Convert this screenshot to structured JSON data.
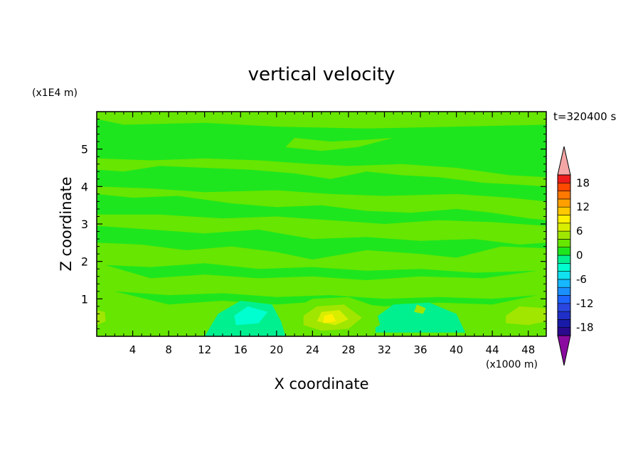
{
  "chart_data": {
    "type": "heatmap",
    "title": "vertical velocity",
    "xlabel": "X coordinate",
    "ylabel": "Z coordinate",
    "x_unit": "(x1000 m)",
    "y_unit": "(x1E4 m)",
    "time_label": "t=320400 s",
    "xlim": [
      0,
      50
    ],
    "ylim": [
      0,
      6
    ],
    "x_ticks": [
      4,
      8,
      12,
      16,
      20,
      24,
      28,
      32,
      36,
      40,
      44,
      48
    ],
    "x_tick_labels": [
      "4",
      "8",
      "12",
      "16",
      "20",
      "24",
      "28",
      "32",
      "36",
      "40",
      "44",
      "48"
    ],
    "y_ticks": [
      1,
      2,
      3,
      4,
      5
    ],
    "y_tick_labels": [
      "1",
      "2",
      "3",
      "4",
      "5"
    ],
    "colorbar": {
      "levels": [
        -20,
        -18,
        -16,
        -14,
        -12,
        -10,
        -8,
        -6,
        -4,
        -2,
        0,
        2,
        4,
        6,
        8,
        10,
        12,
        14,
        16,
        18,
        20
      ],
      "colors": [
        "#2a0a8c",
        "#1a1aa8",
        "#1f2fc8",
        "#2a46e0",
        "#1e64ff",
        "#1a90ff",
        "#16b8ff",
        "#10e0f0",
        "#00ffd0",
        "#00f090",
        "#1ee61e",
        "#66e600",
        "#a0e600",
        "#d8ee00",
        "#fff000",
        "#ffc800",
        "#ffa000",
        "#ff7800",
        "#ff4a00",
        "#ee1c1c"
      ],
      "under_color": "#8a0aa0",
      "over_color": "#f4a6a6",
      "tick_values": [
        -18,
        -12,
        -6,
        0,
        6,
        12,
        18
      ],
      "tick_labels": [
        "-18",
        "-12",
        "-6",
        "0",
        "6",
        "12",
        "18"
      ]
    },
    "background_value": 0,
    "regions": [
      {
        "level": 2,
        "poly": [
          [
            0,
            5.8
          ],
          [
            3,
            5.65
          ],
          [
            12,
            5.7
          ],
          [
            20,
            5.6
          ],
          [
            30,
            5.55
          ],
          [
            40,
            5.6
          ],
          [
            50,
            5.65
          ],
          [
            50,
            6
          ],
          [
            0,
            6
          ]
        ]
      },
      {
        "level": 2,
        "poly": [
          [
            0,
            4.45
          ],
          [
            3,
            4.4
          ],
          [
            7,
            4.55
          ],
          [
            12,
            4.5
          ],
          [
            17,
            4.45
          ],
          [
            22,
            4.35
          ],
          [
            26,
            4.2
          ],
          [
            27,
            4.25
          ],
          [
            30,
            4.4
          ],
          [
            34,
            4.3
          ],
          [
            38,
            4.25
          ],
          [
            43,
            4.1
          ],
          [
            47,
            4.05
          ],
          [
            50,
            4.0
          ],
          [
            50,
            4.25
          ],
          [
            46,
            4.3
          ],
          [
            40,
            4.5
          ],
          [
            34,
            4.6
          ],
          [
            28,
            4.55
          ],
          [
            24,
            4.6
          ],
          [
            18,
            4.7
          ],
          [
            12,
            4.75
          ],
          [
            6,
            4.7
          ],
          [
            0,
            4.75
          ]
        ]
      },
      {
        "level": 2,
        "poly": [
          [
            22,
            5.3
          ],
          [
            26,
            5.2
          ],
          [
            30,
            5.25
          ],
          [
            33,
            5.3
          ],
          [
            29,
            5.05
          ],
          [
            25,
            4.95
          ],
          [
            21,
            5.05
          ]
        ]
      },
      {
        "level": 2,
        "poly": [
          [
            0,
            3.8
          ],
          [
            4,
            3.7
          ],
          [
            9,
            3.75
          ],
          [
            15,
            3.55
          ],
          [
            20,
            3.45
          ],
          [
            25,
            3.5
          ],
          [
            30,
            3.35
          ],
          [
            35,
            3.3
          ],
          [
            40,
            3.4
          ],
          [
            44,
            3.3
          ],
          [
            48,
            3.15
          ],
          [
            50,
            3.1
          ],
          [
            50,
            3.6
          ],
          [
            46,
            3.7
          ],
          [
            40,
            3.8
          ],
          [
            32,
            3.75
          ],
          [
            26,
            3.8
          ],
          [
            20,
            3.9
          ],
          [
            12,
            3.85
          ],
          [
            6,
            3.95
          ],
          [
            0,
            4.0
          ]
        ]
      },
      {
        "level": 2,
        "poly": [
          [
            0,
            2.95
          ],
          [
            6,
            2.85
          ],
          [
            12,
            2.75
          ],
          [
            18,
            2.85
          ],
          [
            24,
            2.6
          ],
          [
            30,
            2.65
          ],
          [
            36,
            2.55
          ],
          [
            42,
            2.6
          ],
          [
            47,
            2.45
          ],
          [
            50,
            2.5
          ],
          [
            50,
            2.95
          ],
          [
            44,
            3.05
          ],
          [
            38,
            3.1
          ],
          [
            32,
            3.0
          ],
          [
            26,
            3.1
          ],
          [
            20,
            3.2
          ],
          [
            14,
            3.15
          ],
          [
            7,
            3.25
          ],
          [
            0,
            3.25
          ]
        ]
      },
      {
        "level": 2,
        "poly": [
          [
            0,
            0
          ],
          [
            50,
            0
          ],
          [
            50,
            2.35
          ],
          [
            45,
            2.4
          ],
          [
            40,
            2.1
          ],
          [
            36,
            2.2
          ],
          [
            30,
            2.3
          ],
          [
            24,
            2.05
          ],
          [
            20,
            2.25
          ],
          [
            15,
            2.4
          ],
          [
            10,
            2.3
          ],
          [
            5,
            2.45
          ],
          [
            0,
            2.5
          ]
        ]
      },
      {
        "level": 0,
        "poly": [
          [
            1,
            1.9
          ],
          [
            6,
            1.85
          ],
          [
            12,
            1.95
          ],
          [
            18,
            1.8
          ],
          [
            24,
            1.85
          ],
          [
            30,
            1.75
          ],
          [
            36,
            1.8
          ],
          [
            42,
            1.7
          ],
          [
            49,
            1.75
          ],
          [
            43,
            1.55
          ],
          [
            36,
            1.6
          ],
          [
            30,
            1.5
          ],
          [
            24,
            1.6
          ],
          [
            18,
            1.55
          ],
          [
            12,
            1.65
          ],
          [
            6,
            1.55
          ]
        ]
      },
      {
        "level": 0,
        "poly": [
          [
            2,
            1.2
          ],
          [
            8,
            1.1
          ],
          [
            14,
            1.15
          ],
          [
            20,
            1.05
          ],
          [
            26,
            1.1
          ],
          [
            32,
            1.0
          ],
          [
            38,
            1.05
          ],
          [
            44,
            1.0
          ],
          [
            49,
            1.1
          ],
          [
            44,
            0.85
          ],
          [
            38,
            0.9
          ],
          [
            32,
            0.8
          ],
          [
            26,
            0.95
          ],
          [
            20,
            0.85
          ],
          [
            14,
            0.95
          ],
          [
            8,
            0.85
          ]
        ]
      },
      {
        "level": -2,
        "poly": [
          [
            12,
            0
          ],
          [
            21,
            0
          ],
          [
            20.5,
            0.4
          ],
          [
            19.5,
            0.85
          ],
          [
            16,
            0.95
          ],
          [
            13.5,
            0.6
          ]
        ]
      },
      {
        "level": -4,
        "poly": [
          [
            15.5,
            0.3
          ],
          [
            18,
            0.35
          ],
          [
            19,
            0.65
          ],
          [
            16.8,
            0.8
          ],
          [
            15.3,
            0.55
          ]
        ]
      },
      {
        "level": -2,
        "poly": [
          [
            31,
            0.1
          ],
          [
            41,
            0.1
          ],
          [
            40,
            0.6
          ],
          [
            37,
            0.9
          ],
          [
            33,
            0.85
          ],
          [
            31,
            0.5
          ]
        ]
      },
      {
        "level": 2,
        "poly": [
          [
            21,
            0.2
          ],
          [
            23,
            0
          ],
          [
            29,
            0
          ],
          [
            31.5,
            0.3
          ],
          [
            31,
            0.8
          ],
          [
            28,
            1.05
          ],
          [
            24,
            1.0
          ],
          [
            21.5,
            0.7
          ]
        ]
      },
      {
        "level": 4,
        "poly": [
          [
            23,
            0.3
          ],
          [
            25,
            0.15
          ],
          [
            28,
            0.2
          ],
          [
            29.5,
            0.5
          ],
          [
            27.5,
            0.85
          ],
          [
            24.5,
            0.8
          ],
          [
            23,
            0.55
          ]
        ]
      },
      {
        "level": 6,
        "poly": [
          [
            24.5,
            0.4
          ],
          [
            26.5,
            0.3
          ],
          [
            28,
            0.45
          ],
          [
            27,
            0.7
          ],
          [
            25,
            0.65
          ]
        ]
      },
      {
        "level": 8,
        "poly": [
          [
            25.2,
            0.35
          ],
          [
            26.6,
            0.4
          ],
          [
            26.2,
            0.6
          ],
          [
            25.3,
            0.55
          ]
        ]
      },
      {
        "level": 2,
        "poly": [
          [
            44,
            0.1
          ],
          [
            50,
            0.1
          ],
          [
            50,
            0.85
          ],
          [
            47,
            0.95
          ],
          [
            44.5,
            0.6
          ]
        ]
      },
      {
        "level": 4,
        "poly": [
          [
            45.5,
            0.35
          ],
          [
            48,
            0.3
          ],
          [
            50,
            0.4
          ],
          [
            50,
            0.75
          ],
          [
            47,
            0.8
          ],
          [
            45.5,
            0.55
          ]
        ]
      },
      {
        "level": 2,
        "poly": [
          [
            0,
            0.1
          ],
          [
            1.5,
            0.2
          ],
          [
            2,
            0.5
          ],
          [
            1.2,
            0.85
          ],
          [
            0,
            0.9
          ]
        ]
      },
      {
        "level": 4,
        "poly": [
          [
            0,
            0.3
          ],
          [
            1,
            0.4
          ],
          [
            0.9,
            0.65
          ],
          [
            0,
            0.7
          ]
        ]
      },
      {
        "level": 4,
        "poly": [
          [
            35.3,
            0.65
          ],
          [
            36.3,
            0.6
          ],
          [
            36.6,
            0.75
          ],
          [
            35.6,
            0.85
          ]
        ]
      }
    ]
  }
}
